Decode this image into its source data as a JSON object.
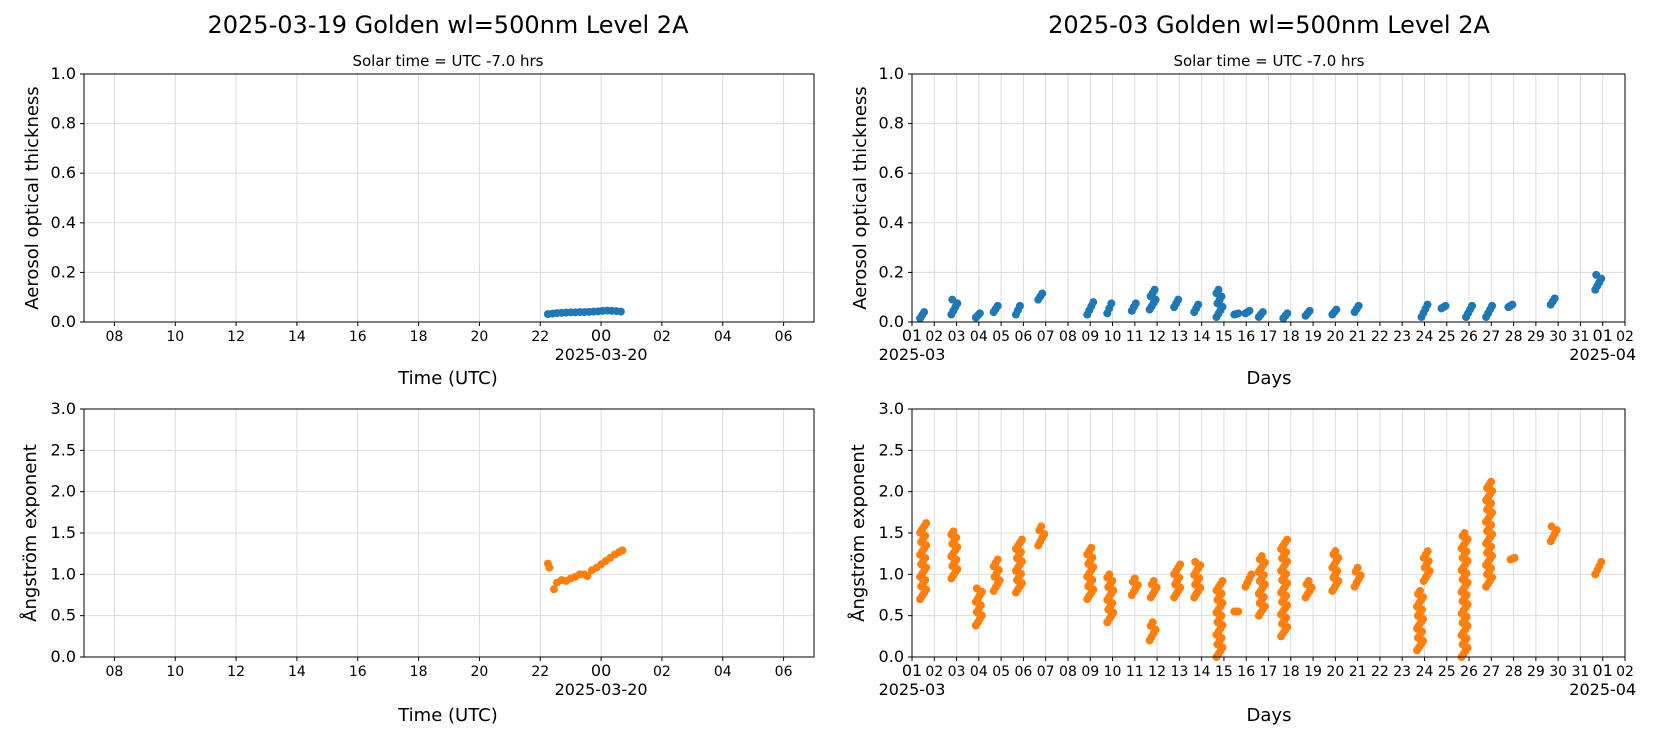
{
  "figure": {
    "panels": [
      {
        "title": "2025-03-19  Golden  wl=500nm  Level 2A",
        "subtitle": "Solar time = UTC -7.0 hrs",
        "xlabel": "Time (UTC)",
        "ylabel": "Aerosol optical thickness",
        "xtick_labels": [
          "08",
          "10",
          "12",
          "14",
          "16",
          "18",
          "20",
          "22",
          "00",
          "02",
          "04",
          "06"
        ],
        "xtick_sublabel": "2025-03-20",
        "ytick_labels": [
          "0.0",
          "0.2",
          "0.4",
          "0.6",
          "0.8",
          "1.0"
        ]
      },
      {
        "title": "2025-03  Golden  wl=500nm  Level 2A",
        "subtitle": "Solar time = UTC -7.0 hrs",
        "xlabel": "Days",
        "ylabel": "Aerosol optical thickness",
        "xtick_labels": [
          "01",
          "02",
          "03",
          "04",
          "05",
          "06",
          "07",
          "08",
          "09",
          "10",
          "11",
          "12",
          "13",
          "14",
          "15",
          "16",
          "17",
          "18",
          "19",
          "20",
          "21",
          "22",
          "23",
          "24",
          "25",
          "26",
          "27",
          "28",
          "29",
          "30",
          "31",
          "01",
          "02"
        ],
        "xtick_sublabel_left": "2025-03",
        "xtick_sublabel_right": "2025-04",
        "ytick_labels": [
          "0.0",
          "0.2",
          "0.4",
          "0.6",
          "0.8",
          "1.0"
        ]
      },
      {
        "xlabel": "Time (UTC)",
        "ylabel": "Ångström exponent",
        "xtick_labels": [
          "08",
          "10",
          "12",
          "14",
          "16",
          "18",
          "20",
          "22",
          "00",
          "02",
          "04",
          "06"
        ],
        "xtick_sublabel": "2025-03-20",
        "ytick_labels": [
          "0.0",
          "0.5",
          "1.0",
          "1.5",
          "2.0",
          "2.5",
          "3.0"
        ]
      },
      {
        "xlabel": "Days",
        "ylabel": "Ångström exponent",
        "xtick_labels": [
          "01",
          "02",
          "03",
          "04",
          "05",
          "06",
          "07",
          "08",
          "09",
          "10",
          "11",
          "12",
          "13",
          "14",
          "15",
          "16",
          "17",
          "18",
          "19",
          "20",
          "21",
          "22",
          "23",
          "24",
          "25",
          "26",
          "27",
          "28",
          "29",
          "30",
          "31",
          "01",
          "02"
        ],
        "xtick_sublabel_left": "2025-03",
        "xtick_sublabel_right": "2025-04",
        "ytick_labels": [
          "0.0",
          "0.5",
          "1.0",
          "1.5",
          "2.0",
          "2.5",
          "3.0"
        ]
      }
    ]
  },
  "chart_data": [
    {
      "type": "scatter",
      "title": "2025-03-19  Golden  wl=500nm  Level 2A",
      "subtitle": "Solar time = UTC -7.0 hrs",
      "xlabel": "Time (UTC)",
      "ylabel": "Aerosol optical thickness",
      "x_unit": "hours UTC from 2025-03-19 00:00",
      "xlim": [
        7,
        31
      ],
      "ylim": [
        0,
        1.0
      ],
      "grid": true,
      "color": "#1f77b4",
      "series": [
        {
          "x": [
            22.25,
            22.4,
            22.55,
            22.7,
            22.85,
            23.0,
            23.15,
            23.3,
            23.45,
            23.6,
            23.75,
            23.9,
            24.05,
            24.2,
            24.35,
            24.5,
            24.65
          ],
          "y": [
            0.032,
            0.034,
            0.036,
            0.037,
            0.038,
            0.039,
            0.039,
            0.04,
            0.04,
            0.041,
            0.042,
            0.043,
            0.045,
            0.046,
            0.045,
            0.044,
            0.042
          ]
        }
      ]
    },
    {
      "type": "scatter",
      "title": "2025-03  Golden  wl=500nm  Level 2A",
      "subtitle": "Solar time = UTC -7.0 hrs",
      "xlabel": "Days",
      "ylabel": "Aerosol optical thickness",
      "x_unit": "day of March 2025 (fractional)",
      "xlim": [
        1,
        33
      ],
      "ylim": [
        0,
        1.0
      ],
      "grid": true,
      "color": "#1f77b4",
      "clusters": [
        {
          "day": 1.5,
          "min": 0.015,
          "max": 0.04
        },
        {
          "day": 2.9,
          "min": 0.03,
          "max": 0.09
        },
        {
          "day": 4.0,
          "min": 0.018,
          "max": 0.035
        },
        {
          "day": 4.8,
          "min": 0.04,
          "max": 0.065
        },
        {
          "day": 5.8,
          "min": 0.03,
          "max": 0.065
        },
        {
          "day": 6.8,
          "min": 0.09,
          "max": 0.115
        },
        {
          "day": 9.0,
          "min": 0.03,
          "max": 0.08
        },
        {
          "day": 9.9,
          "min": 0.035,
          "max": 0.075
        },
        {
          "day": 11.0,
          "min": 0.045,
          "max": 0.075
        },
        {
          "day": 11.8,
          "min": 0.05,
          "max": 0.13
        },
        {
          "day": 12.9,
          "min": 0.06,
          "max": 0.09
        },
        {
          "day": 13.8,
          "min": 0.04,
          "max": 0.07
        },
        {
          "day": 14.8,
          "min": 0.02,
          "max": 0.13
        },
        {
          "day": 15.6,
          "min": 0.03,
          "max": 0.035
        },
        {
          "day": 16.1,
          "min": 0.035,
          "max": 0.045
        },
        {
          "day": 16.7,
          "min": 0.02,
          "max": 0.04
        },
        {
          "day": 17.8,
          "min": 0.015,
          "max": 0.035
        },
        {
          "day": 18.8,
          "min": 0.025,
          "max": 0.045
        },
        {
          "day": 20.0,
          "min": 0.03,
          "max": 0.05
        },
        {
          "day": 21.0,
          "min": 0.04,
          "max": 0.065
        },
        {
          "day": 24.0,
          "min": 0.02,
          "max": 0.07
        },
        {
          "day": 24.9,
          "min": 0.055,
          "max": 0.065
        },
        {
          "day": 26.0,
          "min": 0.02,
          "max": 0.065
        },
        {
          "day": 26.9,
          "min": 0.02,
          "max": 0.065
        },
        {
          "day": 27.9,
          "min": 0.06,
          "max": 0.07
        },
        {
          "day": 29.8,
          "min": 0.07,
          "max": 0.095
        },
        {
          "day": 31.8,
          "min": 0.13,
          "max": 0.19
        }
      ]
    },
    {
      "type": "scatter",
      "xlabel": "Time (UTC)",
      "ylabel": "Ångström exponent",
      "x_unit": "hours UTC from 2025-03-19 00:00",
      "xlim": [
        7,
        31
      ],
      "ylim": [
        0,
        3.0
      ],
      "grid": true,
      "color": "#ff7f0e",
      "series": [
        {
          "x": [
            22.25,
            22.3,
            22.45,
            22.55,
            22.7,
            22.85,
            23.0,
            23.15,
            23.3,
            23.45,
            23.55,
            23.7,
            23.85,
            24.0,
            24.15,
            24.3,
            24.45,
            24.6,
            24.7
          ],
          "y": [
            1.13,
            1.08,
            0.82,
            0.9,
            0.93,
            0.92,
            0.95,
            0.97,
            1.0,
            1.0,
            0.98,
            1.05,
            1.08,
            1.12,
            1.16,
            1.2,
            1.24,
            1.27,
            1.29
          ]
        }
      ]
    },
    {
      "type": "scatter",
      "xlabel": "Days",
      "ylabel": "Ångström exponent",
      "x_unit": "day of March 2025 (fractional)",
      "xlim": [
        1,
        33
      ],
      "ylim": [
        0,
        3.0
      ],
      "grid": true,
      "color": "#ff7f0e",
      "clusters": [
        {
          "day": 1.5,
          "min": 0.7,
          "max": 1.62
        },
        {
          "day": 2.9,
          "min": 0.95,
          "max": 1.52
        },
        {
          "day": 4.0,
          "min": 0.38,
          "max": 0.83
        },
        {
          "day": 4.8,
          "min": 0.8,
          "max": 1.18
        },
        {
          "day": 5.8,
          "min": 0.78,
          "max": 1.42
        },
        {
          "day": 6.8,
          "min": 1.35,
          "max": 1.58
        },
        {
          "day": 9.0,
          "min": 0.7,
          "max": 1.32
        },
        {
          "day": 9.9,
          "min": 0.42,
          "max": 1.0
        },
        {
          "day": 11.0,
          "min": 0.75,
          "max": 0.95
        },
        {
          "day": 11.8,
          "min": 0.2,
          "max": 0.42
        },
        {
          "day": 11.85,
          "min": 0.72,
          "max": 0.92
        },
        {
          "day": 12.9,
          "min": 0.72,
          "max": 1.12
        },
        {
          "day": 13.8,
          "min": 0.72,
          "max": 1.15
        },
        {
          "day": 14.8,
          "min": 0.0,
          "max": 0.92
        },
        {
          "day": 15.6,
          "min": 0.55,
          "max": 0.55
        },
        {
          "day": 16.1,
          "min": 0.85,
          "max": 1.0
        },
        {
          "day": 16.7,
          "min": 0.5,
          "max": 1.22
        },
        {
          "day": 17.7,
          "min": 0.25,
          "max": 1.42
        },
        {
          "day": 18.8,
          "min": 0.72,
          "max": 0.92
        },
        {
          "day": 20.0,
          "min": 0.8,
          "max": 1.28
        },
        {
          "day": 21.0,
          "min": 0.85,
          "max": 1.08
        },
        {
          "day": 23.8,
          "min": 0.08,
          "max": 0.8
        },
        {
          "day": 24.1,
          "min": 0.92,
          "max": 1.28
        },
        {
          "day": 25.8,
          "min": 0.0,
          "max": 1.5
        },
        {
          "day": 26.9,
          "min": 0.85,
          "max": 2.12
        },
        {
          "day": 28.0,
          "min": 1.18,
          "max": 1.2
        },
        {
          "day": 29.8,
          "min": 1.4,
          "max": 1.58
        },
        {
          "day": 31.8,
          "min": 1.0,
          "max": 1.15
        }
      ]
    }
  ]
}
